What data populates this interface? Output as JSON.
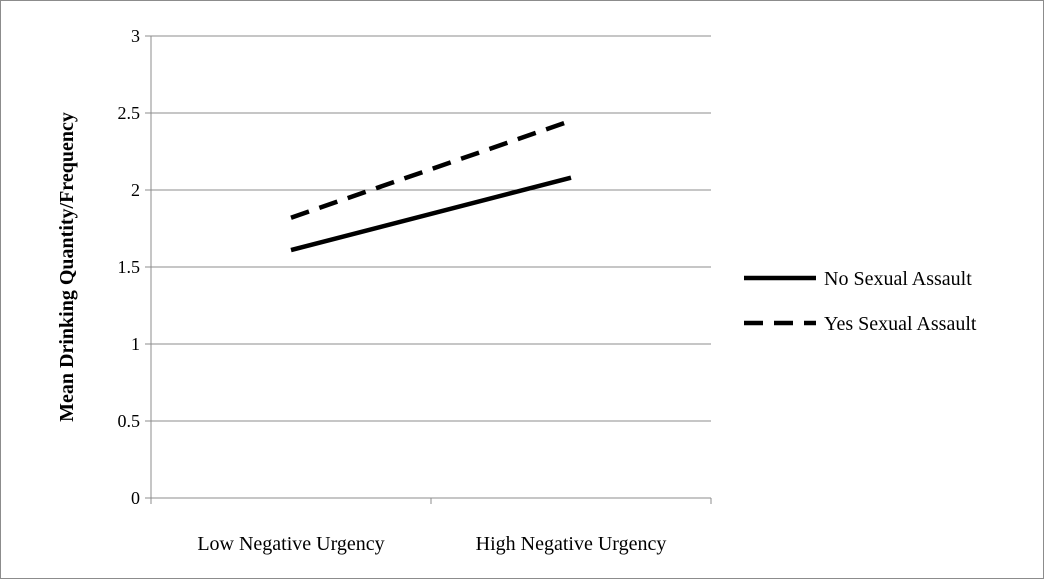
{
  "chart_data": {
    "type": "line",
    "title": "",
    "xlabel": "",
    "ylabel": "Mean Drinking Quantity/Frequency",
    "categories": [
      "Low Negative Urgency",
      "High Negative Urgency"
    ],
    "yticks": [
      "0",
      "0.5",
      "1",
      "1.5",
      "2",
      "2.5",
      "3"
    ],
    "ylim": [
      0,
      3
    ],
    "grid": true,
    "legend_position": "right",
    "series": [
      {
        "name": "No Sexual Assault",
        "values": [
          1.61,
          2.08
        ],
        "line_style": "solid",
        "color": "#000000"
      },
      {
        "name": "Yes Sexual Assault",
        "values": [
          1.82,
          2.45
        ],
        "line_style": "dashed",
        "color": "#000000"
      }
    ]
  }
}
